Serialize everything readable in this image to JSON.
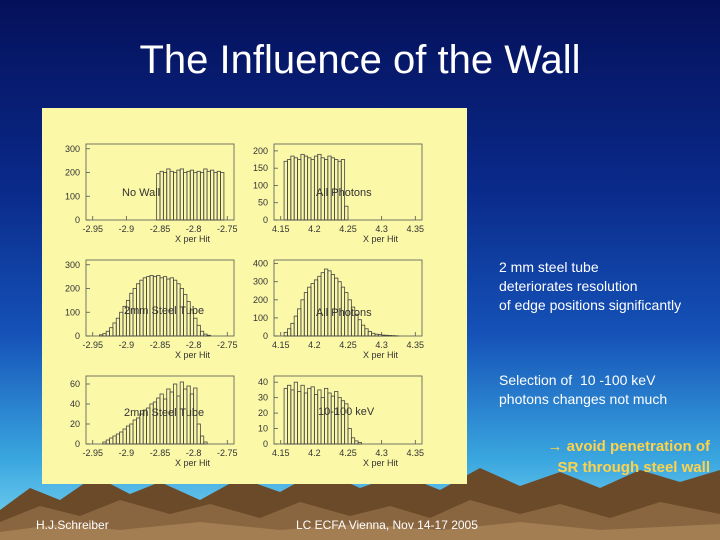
{
  "slide": {
    "title": "The Influence of the Wall",
    "bullets": [
      "2 mm steel tube\ndeteriorates resolution\nof edge positions significantly",
      "Selection of  10 -100 keV\nphotons changes not much"
    ],
    "conclusion_arrow": "→",
    "conclusion": "avoid penetration of\nSR through steel wall",
    "footer_left": "H.J.Schreiber",
    "footer_center": "LC ECFA Vienna, Nov 14-17 2005"
  },
  "chart_data": [
    {
      "type": "bar",
      "annotation": "No Wall",
      "xlabel": "X per Hit",
      "xticks": [
        "-2.95",
        "-2.9",
        "-2.85",
        "-2.8",
        "-2.75"
      ],
      "xlim": [
        -2.96,
        -2.74
      ],
      "yticks": [
        "0",
        "100",
        "200",
        "300"
      ],
      "ylim": [
        0,
        320
      ],
      "bin_width": 0.005,
      "x": [
        -2.855,
        -2.85,
        -2.845,
        -2.84,
        -2.835,
        -2.83,
        -2.825,
        -2.82,
        -2.815,
        -2.81,
        -2.805,
        -2.8,
        -2.795,
        -2.79,
        -2.785,
        -2.78,
        -2.775,
        -2.77,
        -2.765,
        -2.76
      ],
      "values": [
        195,
        205,
        200,
        215,
        205,
        200,
        210,
        215,
        200,
        205,
        210,
        200,
        205,
        200,
        215,
        205,
        210,
        200,
        205,
        200
      ]
    },
    {
      "type": "bar",
      "annotation": "All Photons",
      "xlabel": "X per Hit",
      "xticks": [
        "4.15",
        "4.2",
        "4.25",
        "4.3",
        "4.35"
      ],
      "xlim": [
        4.14,
        4.36
      ],
      "yticks": [
        "0",
        "50",
        "100",
        "150",
        "200"
      ],
      "ylim": [
        0,
        220
      ],
      "bin_width": 0.005,
      "x": [
        4.155,
        4.16,
        4.165,
        4.17,
        4.175,
        4.18,
        4.185,
        4.19,
        4.195,
        4.2,
        4.205,
        4.21,
        4.215,
        4.22,
        4.225,
        4.23,
        4.235,
        4.24,
        4.245
      ],
      "values": [
        170,
        175,
        185,
        180,
        175,
        190,
        185,
        180,
        175,
        185,
        190,
        180,
        175,
        185,
        180,
        175,
        170,
        175,
        40
      ]
    },
    {
      "type": "bar",
      "annotation": "2mm Steel Tube",
      "xlabel": "X per Hit",
      "xticks": [
        "-2.95",
        "-2.9",
        "-2.85",
        "-2.8",
        "-2.75"
      ],
      "xlim": [
        -2.96,
        -2.74
      ],
      "yticks": [
        "0",
        "100",
        "200",
        "300"
      ],
      "ylim": [
        0,
        320
      ],
      "bin_width": 0.005,
      "x": [
        -2.94,
        -2.935,
        -2.93,
        -2.925,
        -2.92,
        -2.915,
        -2.91,
        -2.905,
        -2.9,
        -2.895,
        -2.89,
        -2.885,
        -2.88,
        -2.875,
        -2.87,
        -2.865,
        -2.86,
        -2.855,
        -2.85,
        -2.845,
        -2.84,
        -2.835,
        -2.83,
        -2.825,
        -2.82,
        -2.815,
        -2.81,
        -2.805,
        -2.8,
        -2.795,
        -2.79,
        -2.785,
        -2.78
      ],
      "values": [
        5,
        10,
        20,
        35,
        55,
        75,
        100,
        125,
        150,
        180,
        200,
        220,
        235,
        245,
        250,
        255,
        250,
        255,
        245,
        250,
        240,
        245,
        235,
        220,
        200,
        175,
        145,
        110,
        75,
        45,
        20,
        8,
        3
      ]
    },
    {
      "type": "bar",
      "annotation": "All Photons",
      "xlabel": "X per Hit",
      "xticks": [
        "4.15",
        "4.2",
        "4.25",
        "4.3",
        "4.35"
      ],
      "xlim": [
        4.14,
        4.36
      ],
      "yticks": [
        "0",
        "100",
        "200",
        "300",
        "400"
      ],
      "ylim": [
        0,
        420
      ],
      "bin_width": 0.005,
      "x": [
        4.155,
        4.16,
        4.165,
        4.17,
        4.175,
        4.18,
        4.185,
        4.19,
        4.195,
        4.2,
        4.205,
        4.21,
        4.215,
        4.22,
        4.225,
        4.23,
        4.235,
        4.24,
        4.245,
        4.25,
        4.255,
        4.26,
        4.265,
        4.27,
        4.275,
        4.28,
        4.285,
        4.29,
        4.295,
        4.3,
        4.305,
        4.31,
        4.315,
        4.32
      ],
      "values": [
        20,
        40,
        70,
        110,
        150,
        200,
        240,
        270,
        290,
        310,
        330,
        350,
        370,
        360,
        340,
        320,
        300,
        270,
        240,
        200,
        160,
        120,
        90,
        60,
        40,
        25,
        15,
        10,
        8,
        5,
        4,
        3,
        2,
        1
      ]
    },
    {
      "type": "bar",
      "annotation": "2mm Steel Tube",
      "xlabel": "X per Hit",
      "xticks": [
        "-2.95",
        "-2.9",
        "-2.85",
        "-2.8",
        "-2.75"
      ],
      "xlim": [
        -2.96,
        -2.74
      ],
      "yticks": [
        "0",
        "20",
        "40",
        "60"
      ],
      "ylim": [
        0,
        68
      ],
      "bin_width": 0.005,
      "x": [
        -2.935,
        -2.93,
        -2.925,
        -2.92,
        -2.915,
        -2.91,
        -2.905,
        -2.9,
        -2.895,
        -2.89,
        -2.885,
        -2.88,
        -2.875,
        -2.87,
        -2.865,
        -2.86,
        -2.855,
        -2.85,
        -2.845,
        -2.84,
        -2.835,
        -2.83,
        -2.825,
        -2.82,
        -2.815,
        -2.81,
        -2.805,
        -2.8,
        -2.795,
        -2.79,
        -2.785
      ],
      "values": [
        2,
        4,
        6,
        8,
        10,
        12,
        15,
        18,
        20,
        24,
        26,
        30,
        34,
        36,
        40,
        42,
        46,
        50,
        45,
        55,
        52,
        60,
        48,
        62,
        55,
        58,
        50,
        56,
        20,
        8,
        2
      ]
    },
    {
      "type": "bar",
      "annotation": "10-100 keV",
      "xlabel": "X per Hit",
      "xticks": [
        "4.15",
        "4.2",
        "4.25",
        "4.3",
        "4.35"
      ],
      "xlim": [
        4.14,
        4.36
      ],
      "yticks": [
        "0",
        "10",
        "20",
        "30",
        "40"
      ],
      "ylim": [
        0,
        44
      ],
      "bin_width": 0.005,
      "x": [
        4.155,
        4.16,
        4.165,
        4.17,
        4.175,
        4.18,
        4.185,
        4.19,
        4.195,
        4.2,
        4.205,
        4.21,
        4.215,
        4.22,
        4.225,
        4.23,
        4.235,
        4.24,
        4.245,
        4.25,
        4.255,
        4.26,
        4.265
      ],
      "values": [
        36,
        38,
        35,
        40,
        34,
        38,
        33,
        36,
        37,
        32,
        35,
        30,
        36,
        33,
        31,
        34,
        30,
        28,
        26,
        10,
        4,
        2,
        1
      ]
    }
  ]
}
